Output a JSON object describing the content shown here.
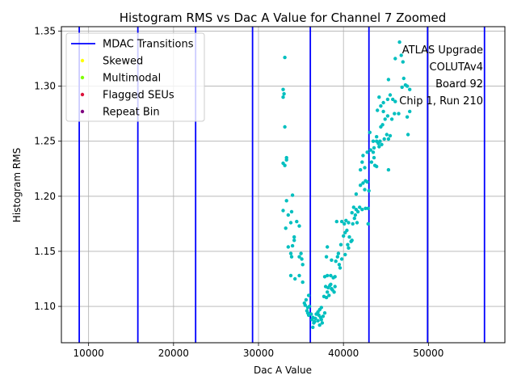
{
  "chart_data": {
    "type": "scatter",
    "title": "Histogram RMS vs Dac A Value for Channel 7 Zoomed",
    "xlabel": "Dac A Value",
    "ylabel": "Histogram RMS",
    "xlim": [
      6800,
      59000
    ],
    "ylim": [
      1.067,
      1.354
    ],
    "xticks": [
      10000,
      20000,
      30000,
      40000,
      50000
    ],
    "xtick_labels": [
      "10000",
      "20000",
      "30000",
      "40000",
      "50000"
    ],
    "yticks": [
      1.1,
      1.15,
      1.2,
      1.25,
      1.3,
      1.35
    ],
    "ytick_labels": [
      "1.10",
      "1.15",
      "1.20",
      "1.25",
      "1.30",
      "1.35"
    ],
    "grid": true,
    "legend_position": "top-left",
    "annotation_lines": [
      "ATLAS Upgrade",
      "COLUTAv4",
      "Board 92",
      "Chip 1, Run 210"
    ],
    "mdac_transitions": [
      8900,
      15800,
      22600,
      29300,
      36100,
      43000,
      49900,
      56600
    ],
    "legend": [
      {
        "label": "MDAC Transitions",
        "kind": "line",
        "color": "#0000ff"
      },
      {
        "label": "Skewed",
        "kind": "marker",
        "color": "#ffff00"
      },
      {
        "label": "Multimodal",
        "kind": "marker",
        "color": "#7fff00"
      },
      {
        "label": "Flagged SEUs",
        "kind": "marker",
        "color": "#dc143c"
      },
      {
        "label": "Repeat Bin",
        "kind": "marker",
        "color": "#800080"
      }
    ],
    "series": [
      {
        "color": "#00bfbf",
        "points": [
          [
            33100,
            1.326
          ],
          [
            32900,
            1.297
          ],
          [
            33000,
            1.293
          ],
          [
            32900,
            1.29
          ],
          [
            33100,
            1.263
          ],
          [
            33300,
            1.235
          ],
          [
            33300,
            1.233
          ],
          [
            32900,
            1.23
          ],
          [
            33100,
            1.228
          ],
          [
            34000,
            1.201
          ],
          [
            33300,
            1.196
          ],
          [
            33900,
            1.186
          ],
          [
            32900,
            1.187
          ],
          [
            33500,
            1.183
          ],
          [
            34500,
            1.177
          ],
          [
            34800,
            1.173
          ],
          [
            33800,
            1.176
          ],
          [
            33200,
            1.171
          ],
          [
            34200,
            1.163
          ],
          [
            34200,
            1.16
          ],
          [
            33500,
            1.154
          ],
          [
            34000,
            1.155
          ],
          [
            35000,
            1.148
          ],
          [
            33800,
            1.148
          ],
          [
            33900,
            1.145
          ],
          [
            34800,
            1.145
          ],
          [
            35200,
            1.138
          ],
          [
            35100,
            1.143
          ],
          [
            33800,
            1.128
          ],
          [
            34800,
            1.128
          ],
          [
            34300,
            1.125
          ],
          [
            35200,
            1.122
          ],
          [
            35900,
            1.11
          ],
          [
            35600,
            1.106
          ],
          [
            35400,
            1.103
          ],
          [
            35500,
            1.101
          ],
          [
            36000,
            1.1
          ],
          [
            35800,
            1.099
          ],
          [
            35700,
            1.096
          ],
          [
            35800,
            1.094
          ],
          [
            35900,
            1.092
          ],
          [
            36200,
            1.093
          ],
          [
            36400,
            1.09
          ],
          [
            36300,
            1.088
          ],
          [
            36500,
            1.085
          ],
          [
            36400,
            1.081
          ],
          [
            36600,
            1.086
          ],
          [
            36700,
            1.089
          ],
          [
            36800,
            1.093
          ],
          [
            37000,
            1.095
          ],
          [
            37200,
            1.097
          ],
          [
            37400,
            1.099
          ],
          [
            37100,
            1.092
          ],
          [
            37300,
            1.09
          ],
          [
            37000,
            1.087
          ],
          [
            37500,
            1.085
          ],
          [
            37200,
            1.083
          ],
          [
            37400,
            1.088
          ],
          [
            37600,
            1.091
          ],
          [
            37800,
            1.094
          ],
          [
            38000,
            1.108
          ],
          [
            37700,
            1.109
          ],
          [
            38300,
            1.11
          ],
          [
            38100,
            1.113
          ],
          [
            37900,
            1.118
          ],
          [
            38200,
            1.117
          ],
          [
            38400,
            1.119
          ],
          [
            38700,
            1.115
          ],
          [
            38900,
            1.113
          ],
          [
            38600,
            1.116
          ],
          [
            38500,
            1.12
          ],
          [
            39000,
            1.118
          ],
          [
            37800,
            1.127
          ],
          [
            38100,
            1.128
          ],
          [
            38500,
            1.128
          ],
          [
            38800,
            1.126
          ],
          [
            39000,
            1.127
          ],
          [
            38000,
            1.145
          ],
          [
            38100,
            1.154
          ],
          [
            38600,
            1.142
          ],
          [
            39100,
            1.141
          ],
          [
            39300,
            1.145
          ],
          [
            39500,
            1.138
          ],
          [
            39600,
            1.135
          ],
          [
            39800,
            1.143
          ],
          [
            39400,
            1.148
          ],
          [
            39700,
            1.156
          ],
          [
            40000,
            1.164
          ],
          [
            40200,
            1.167
          ],
          [
            40100,
            1.175
          ],
          [
            39800,
            1.177
          ],
          [
            39200,
            1.177
          ],
          [
            40300,
            1.178
          ],
          [
            40600,
            1.176
          ],
          [
            40400,
            1.169
          ],
          [
            40700,
            1.163
          ],
          [
            40900,
            1.159
          ],
          [
            40500,
            1.156
          ],
          [
            41000,
            1.16
          ],
          [
            40600,
            1.153
          ],
          [
            40200,
            1.147
          ],
          [
            41100,
            1.175
          ],
          [
            41300,
            1.18
          ],
          [
            41000,
            1.185
          ],
          [
            41200,
            1.19
          ],
          [
            41500,
            1.188
          ],
          [
            41700,
            1.186
          ],
          [
            41900,
            1.19
          ],
          [
            42200,
            1.188
          ],
          [
            41600,
            1.176
          ],
          [
            41400,
            1.183
          ],
          [
            42600,
            1.189
          ],
          [
            42900,
            1.189
          ],
          [
            42900,
            1.175
          ],
          [
            41500,
            1.202
          ],
          [
            42000,
            1.21
          ],
          [
            42300,
            1.212
          ],
          [
            42600,
            1.214
          ],
          [
            42800,
            1.213
          ],
          [
            42500,
            1.206
          ],
          [
            43000,
            1.205
          ],
          [
            42000,
            1.224
          ],
          [
            42500,
            1.226
          ],
          [
            42200,
            1.231
          ],
          [
            42300,
            1.237
          ],
          [
            42800,
            1.24
          ],
          [
            43200,
            1.242
          ],
          [
            43500,
            1.24
          ],
          [
            43600,
            1.235
          ],
          [
            43700,
            1.228
          ],
          [
            43900,
            1.227
          ],
          [
            43300,
            1.231
          ],
          [
            43100,
            1.258
          ],
          [
            43500,
            1.25
          ],
          [
            43900,
            1.25
          ],
          [
            44100,
            1.248
          ],
          [
            44300,
            1.25
          ],
          [
            44500,
            1.247
          ],
          [
            44200,
            1.245
          ],
          [
            43600,
            1.244
          ],
          [
            43900,
            1.254
          ],
          [
            44800,
            1.252
          ],
          [
            45100,
            1.256
          ],
          [
            45300,
            1.252
          ],
          [
            45500,
            1.255
          ],
          [
            44400,
            1.263
          ],
          [
            44600,
            1.265
          ],
          [
            44900,
            1.27
          ],
          [
            45200,
            1.273
          ],
          [
            45700,
            1.27
          ],
          [
            46000,
            1.275
          ],
          [
            44000,
            1.278
          ],
          [
            44400,
            1.282
          ],
          [
            44700,
            1.285
          ],
          [
            44200,
            1.29
          ],
          [
            45200,
            1.288
          ],
          [
            45500,
            1.292
          ],
          [
            45800,
            1.288
          ],
          [
            46100,
            1.286
          ],
          [
            44700,
            1.277
          ],
          [
            45300,
            1.306
          ],
          [
            45300,
            1.224
          ],
          [
            46100,
            1.325
          ],
          [
            46600,
            1.34
          ],
          [
            46800,
            1.328
          ],
          [
            47000,
            1.322
          ],
          [
            46900,
            1.299
          ],
          [
            47100,
            1.307
          ],
          [
            47300,
            1.301
          ],
          [
            47500,
            1.3
          ],
          [
            47800,
            1.297
          ],
          [
            46500,
            1.275
          ],
          [
            47500,
            1.272
          ],
          [
            47800,
            1.277
          ],
          [
            47600,
            1.256
          ]
        ]
      }
    ]
  }
}
